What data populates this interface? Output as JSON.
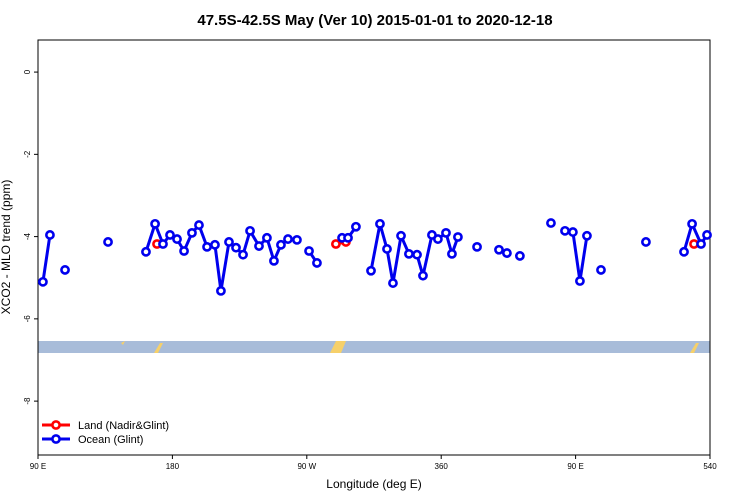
{
  "chart_data": {
    "type": "line",
    "title": "47.5S-42.5S May (Ver 10)   2015-01-01 to 2020-12-18",
    "x_label": "Longitude (deg E)",
    "y_label": "XCO2 - MLO trend (ppm)",
    "xlim": [
      90,
      540
    ],
    "ylim": [
      -9.31,
      0.78
    ],
    "xticks": [
      {
        "value": 90,
        "label": "90 E"
      },
      180,
      {
        "value": 270,
        "label": "90 W"
      },
      360,
      {
        "value": 450,
        "label": "90 E"
      },
      540
    ],
    "yticks": [
      0,
      -2,
      -4,
      -6,
      -8
    ],
    "legend": "bottom-left",
    "series": [
      {
        "name": "Land (Nadir&Glint)",
        "color": "#ff0000",
        "x": [
          169.7,
          null,
          289.5,
          296.2,
          null,
          529.3
        ],
        "values": [
          -4.18,
          null,
          -4.18,
          -4.13,
          null,
          -4.18
        ]
      },
      {
        "name": "Ocean (Glint)",
        "color": "#0000ee",
        "x": [
          93.3,
          98.0,
          null,
          108.1,
          null,
          136.9,
          null,
          162.3,
          168.4,
          173.7,
          178.4,
          183.1,
          187.8,
          193.1,
          197.8,
          203.2,
          208.5,
          212.5,
          217.9,
          222.6,
          227.3,
          232.0,
          238.0,
          243.3,
          248.0,
          252.7,
          257.4,
          263.4,
          null,
          271.5,
          276.8,
          null,
          293.6,
          297.6,
          302.9,
          null,
          313.0,
          319.0,
          323.7,
          327.7,
          333.1,
          338.4,
          343.8,
          347.8,
          353.8,
          357.8,
          363.2,
          367.2,
          371.2,
          null,
          384.0,
          null,
          398.7,
          404.0,
          null,
          412.7,
          null,
          433.5,
          null,
          442.9,
          448.2,
          452.9,
          457.6,
          null,
          467.0,
          null,
          497.1,
          null,
          522.6,
          528.0,
          534.0,
          538.0
        ],
        "values": [
          -5.1,
          -3.96,
          null,
          -4.81,
          null,
          -4.13,
          null,
          -4.37,
          -3.69,
          -4.18,
          -3.96,
          -4.06,
          -4.35,
          -3.91,
          -3.72,
          -4.25,
          -4.2,
          -5.32,
          -4.13,
          -4.27,
          -4.44,
          -3.86,
          -4.23,
          -4.03,
          -4.59,
          -4.2,
          -4.06,
          -4.08,
          null,
          -4.35,
          -4.64,
          null,
          -4.03,
          -4.03,
          -3.76,
          null,
          -4.83,
          -3.69,
          -4.3,
          -5.13,
          -3.98,
          -4.42,
          -4.44,
          -4.95,
          -3.96,
          -4.06,
          -3.91,
          -4.42,
          -4.01,
          null,
          -4.25,
          null,
          -4.32,
          -4.4,
          null,
          -4.47,
          null,
          -3.67,
          null,
          -3.86,
          -3.89,
          -5.08,
          -3.98,
          null,
          -4.81,
          null,
          -4.13,
          null,
          -4.37,
          -3.69,
          -4.18,
          -3.96
        ]
      }
    ]
  }
}
